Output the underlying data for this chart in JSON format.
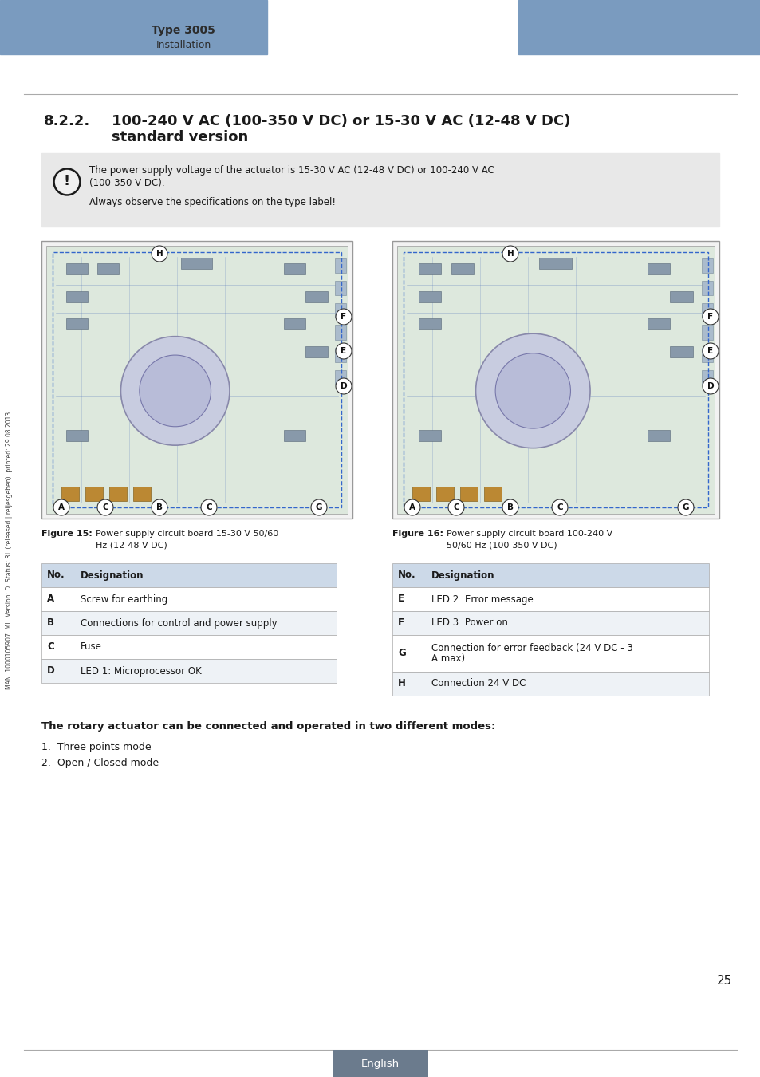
{
  "page_bg": "#ffffff",
  "header_bar_color": "#7a9bbf",
  "header_text_type": "Type 3005",
  "header_text_install": "Installation",
  "burkert_color": "#7a9bbf",
  "warning_bg": "#e8e8e8",
  "warning_text1": "The power supply voltage of the actuator is 15-30 V AC (12-48 V DC) or 100-240 V AC",
  "warning_text1b": "(100-350 V DC).",
  "warning_text2": "Always observe the specifications on the type label!",
  "table_header_bg": "#ccd9e8",
  "table_row_bg_white": "#ffffff",
  "table_row_bg_alt": "#eef2f6",
  "table_data_left": [
    [
      "No.",
      "Designation"
    ],
    [
      "A",
      "Screw for earthing"
    ],
    [
      "B",
      "Connections for control and power supply"
    ],
    [
      "C",
      "Fuse"
    ],
    [
      "D",
      "LED 1: Microprocessor OK"
    ]
  ],
  "table_data_right": [
    [
      "No.",
      "Designation"
    ],
    [
      "E",
      "LED 2: Error message"
    ],
    [
      "F",
      "LED 3: Power on"
    ],
    [
      "G",
      "Connection for error feedback (24 V DC - 3\nA max)"
    ],
    [
      "H",
      "Connection 24 V DC"
    ]
  ],
  "bottom_text1": "The rotary actuator can be connected and operated in two different modes:",
  "bottom_text2": "1.  Three points mode",
  "bottom_text3": "2.  Open / Closed mode",
  "page_number": "25",
  "footer_bg": "#6b7b8d",
  "footer_text": "English",
  "sidebar_text": "MAN  1000105907  ML  Version: D  Status: RL (released | reijesgeben)  printed: 29.08.2013"
}
